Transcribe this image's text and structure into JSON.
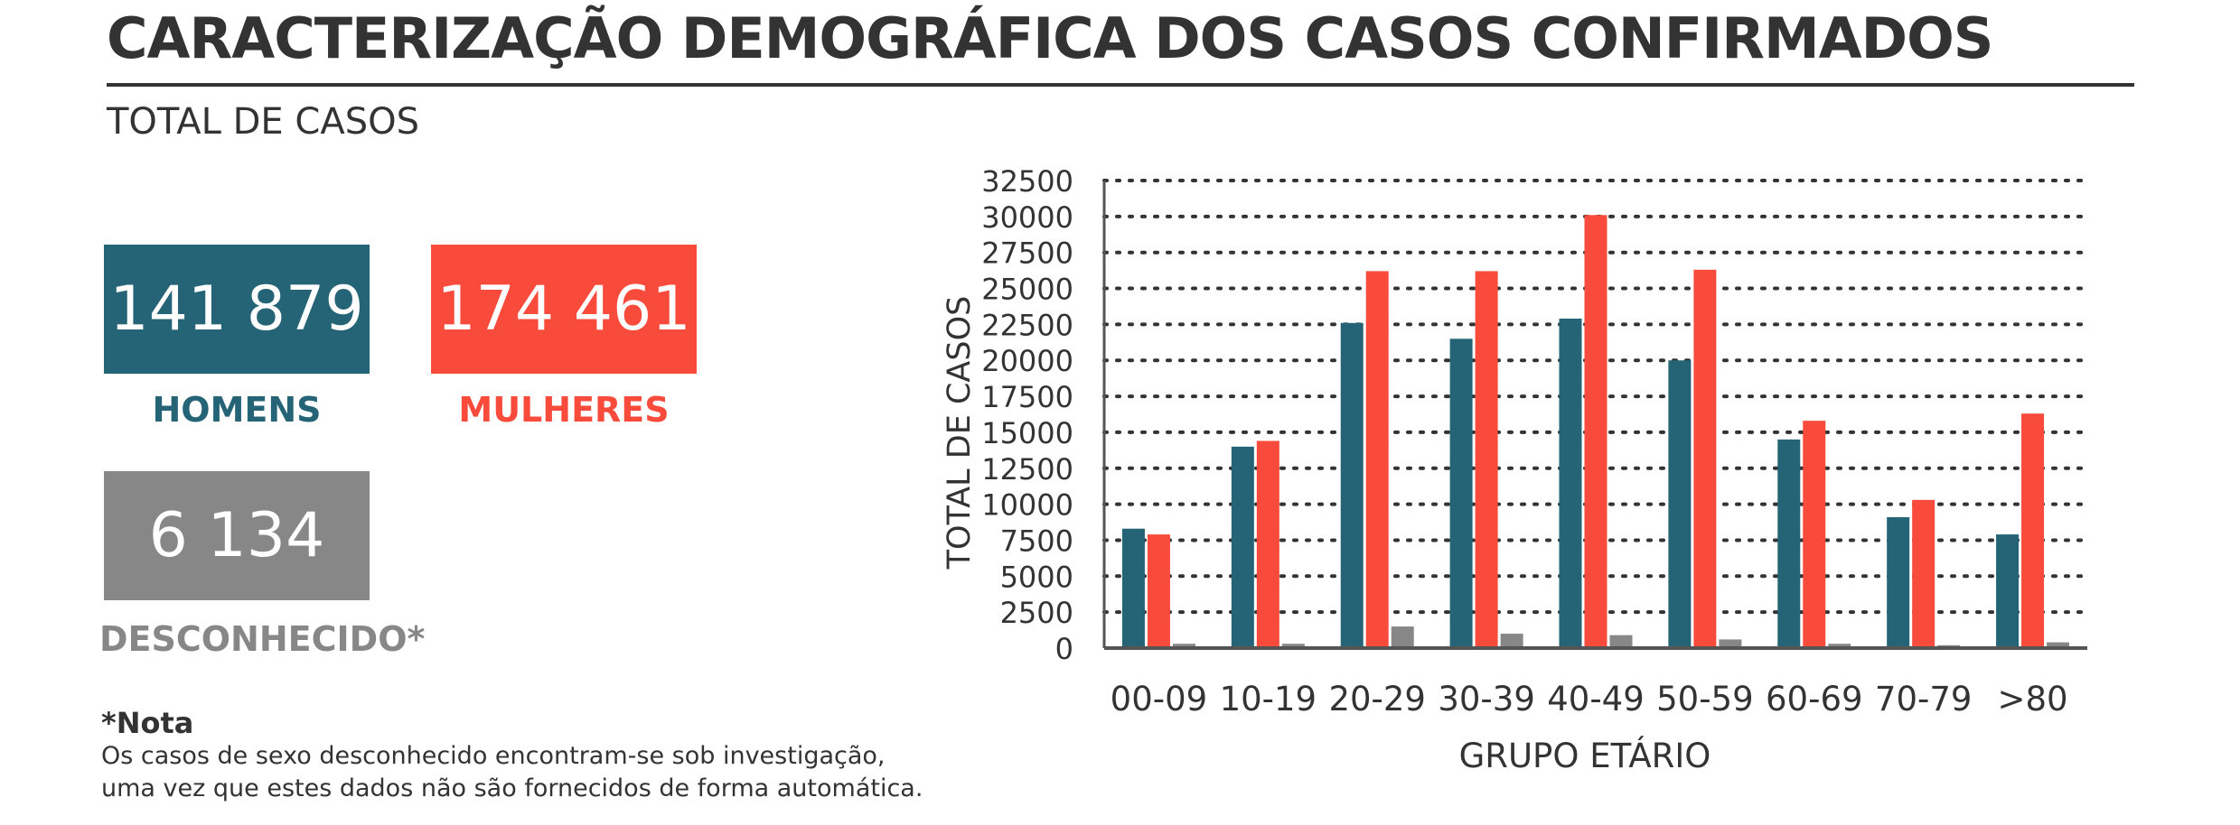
{
  "header": {
    "title": "CARACTERIZAÇÃO DEMOGRÁFICA DOS CASOS CONFIRMADOS",
    "subtitle": "TOTAL DE CASOS"
  },
  "stats": {
    "men": {
      "value": "141 879",
      "label": "HOMENS",
      "color": "#246476"
    },
    "women": {
      "value": "174 461",
      "label": "MULHERES",
      "color": "#f94b3b"
    },
    "unknown": {
      "value": "6 134",
      "label": "DESCONHECIDO*",
      "color": "#878787"
    }
  },
  "note": {
    "title": "*Nota",
    "line1": "Os casos de sexo desconhecido encontram-se sob investigação,",
    "line2": "uma vez que estes dados não são fornecidos de forma automática."
  },
  "chart_data": {
    "type": "bar",
    "xlabel": "GRUPO ETÁRIO",
    "ylabel": "TOTAL DE CASOS",
    "ylim": [
      0,
      32500
    ],
    "yticks": [
      0,
      2500,
      5000,
      7500,
      10000,
      12500,
      15000,
      17500,
      20000,
      22500,
      25000,
      27500,
      30000,
      32500
    ],
    "grid": "horizontal-dotted",
    "categories": [
      "00-09",
      "10-19",
      "20-29",
      "30-39",
      "40-49",
      "50-59",
      "60-69",
      "70-79",
      ">80"
    ],
    "series": [
      {
        "color": "#246476",
        "values": [
          8300,
          14000,
          22600,
          21500,
          22900,
          20000,
          14500,
          9100,
          7900
        ]
      },
      {
        "color": "#f94b3b",
        "values": [
          7900,
          14400,
          26200,
          26200,
          30100,
          26300,
          15800,
          10300,
          16300
        ]
      },
      {
        "color": "#878787",
        "values": [
          300,
          300,
          1500,
          1000,
          900,
          600,
          300,
          200,
          400
        ]
      }
    ]
  }
}
